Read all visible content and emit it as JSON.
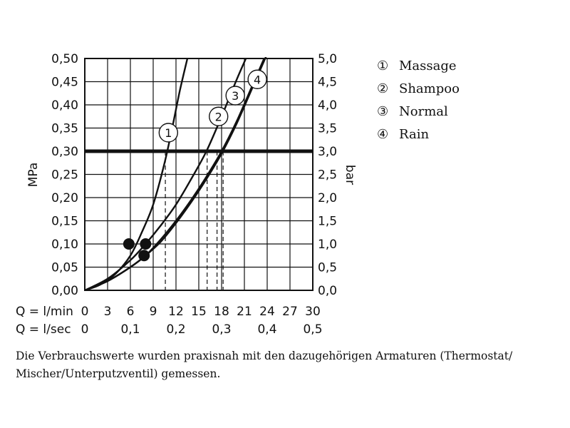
{
  "chart_data": {
    "type": "line",
    "title": "",
    "left_axis": {
      "label": "MPa",
      "ticks": [
        "0,00",
        "0,05",
        "0,10",
        "0,15",
        "0,20",
        "0,25",
        "0,30",
        "0,35",
        "0,40",
        "0,45",
        "0,50"
      ],
      "range": [
        0,
        0.5
      ]
    },
    "right_axis": {
      "label": "bar",
      "ticks": [
        "0,0",
        "0,5",
        "1,0",
        "1,5",
        "2,0",
        "2,5",
        "3,0",
        "3,5",
        "4,0",
        "4,5",
        "5,0"
      ],
      "range": [
        0,
        5
      ]
    },
    "x_axis_lmin": {
      "label": "Q = l/min",
      "ticks": [
        "0",
        "3",
        "6",
        "9",
        "12",
        "15",
        "18",
        "21",
        "24",
        "27",
        "30"
      ],
      "range": [
        0,
        30
      ]
    },
    "x_axis_lsec": {
      "label": "Q = l/sec",
      "ticks": [
        "0",
        "0,1",
        "0,2",
        "0,3",
        "0,4",
        "0,5"
      ],
      "tick_positions_lmin": [
        0,
        6,
        12,
        18,
        24,
        30
      ]
    },
    "grid": true,
    "reference_line": {
      "y": 0.3
    },
    "legend_position": "right",
    "series": [
      {
        "id": "1",
        "name": "Massage",
        "marker_label": "1",
        "points": [
          [
            0,
            0
          ],
          [
            2,
            0.012
          ],
          [
            4,
            0.035
          ],
          [
            6,
            0.075
          ],
          [
            7.5,
            0.125
          ],
          [
            9,
            0.185
          ],
          [
            10.5,
            0.275
          ],
          [
            11.5,
            0.35
          ],
          [
            12.5,
            0.43
          ],
          [
            13.5,
            0.5
          ]
        ],
        "dot": [
          5.8,
          0.1
        ],
        "label_at": [
          11,
          0.34
        ],
        "reading_x": 10.6
      },
      {
        "id": "2",
        "name": "Shampoo",
        "marker_label": "2",
        "points": [
          [
            0,
            0
          ],
          [
            3,
            0.025
          ],
          [
            6,
            0.065
          ],
          [
            8,
            0.1
          ],
          [
            10,
            0.14
          ],
          [
            12,
            0.185
          ],
          [
            14,
            0.24
          ],
          [
            16,
            0.3
          ],
          [
            18,
            0.375
          ],
          [
            20,
            0.455
          ],
          [
            21.2,
            0.5
          ]
        ],
        "dot": [
          8,
          0.1
        ],
        "label_at": [
          17.6,
          0.375
        ],
        "reading_x": 16.1
      },
      {
        "id": "3",
        "name": "Normal",
        "marker_label": "3",
        "points": [
          [
            0,
            0
          ],
          [
            3,
            0.02
          ],
          [
            6,
            0.05
          ],
          [
            8,
            0.075
          ],
          [
            10,
            0.11
          ],
          [
            12,
            0.15
          ],
          [
            14,
            0.195
          ],
          [
            16,
            0.245
          ],
          [
            18,
            0.3
          ],
          [
            20,
            0.365
          ],
          [
            22,
            0.44
          ],
          [
            23.6,
            0.5
          ]
        ],
        "dot": [
          7.8,
          0.075
        ],
        "label_at": [
          19.8,
          0.42
        ],
        "reading_x": 17.4
      },
      {
        "id": "4",
        "name": "Rain",
        "marker_label": "4",
        "points": [
          [
            0,
            0
          ],
          [
            3,
            0.02
          ],
          [
            6,
            0.05
          ],
          [
            8,
            0.075
          ],
          [
            10,
            0.105
          ],
          [
            12,
            0.145
          ],
          [
            14,
            0.19
          ],
          [
            16,
            0.24
          ],
          [
            18,
            0.295
          ],
          [
            20,
            0.36
          ],
          [
            22,
            0.435
          ],
          [
            24,
            0.51
          ]
        ],
        "dot": null,
        "label_at": [
          22.7,
          0.455
        ],
        "reading_x": 18.2
      }
    ]
  },
  "legend": [
    {
      "symbol": "①",
      "label": "Massage"
    },
    {
      "symbol": "②",
      "label": "Shampoo"
    },
    {
      "symbol": "③",
      "label": "Normal"
    },
    {
      "symbol": "④",
      "label": "Rain"
    }
  ],
  "note": "Die Verbrauchswerte wurden praxisnah mit den dazugehörigen Armaturen (Thermostat/ Mischer/Unterputzventil) gemessen."
}
